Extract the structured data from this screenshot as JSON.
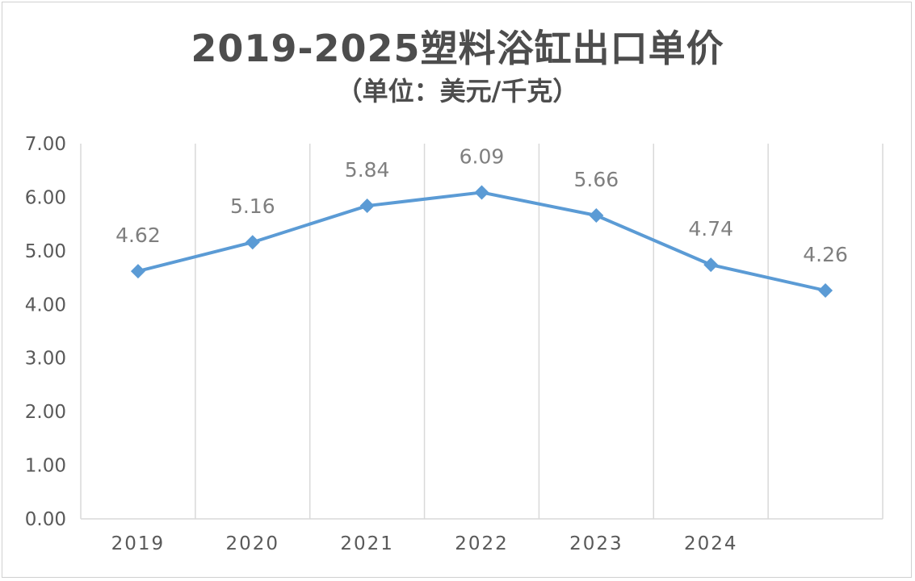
{
  "chart_data": {
    "type": "line",
    "title": "2019-2025塑料浴缸出口单价",
    "subtitle": "（单位：美元/千克）",
    "categories": [
      "2019",
      "2020",
      "2021",
      "2022",
      "2023",
      "2024",
      ""
    ],
    "series": [
      {
        "values": [
          4.62,
          5.16,
          5.84,
          6.09,
          5.66,
          4.74,
          4.26
        ]
      }
    ],
    "data_labels": [
      "4.62",
      "5.16",
      "5.84",
      "6.09",
      "5.66",
      "4.74",
      "4.26"
    ],
    "y_ticks": [
      "0.00",
      "1.00",
      "2.00",
      "3.00",
      "4.00",
      "5.00",
      "6.00",
      "7.00"
    ],
    "ylim": [
      0,
      7
    ],
    "grid": "vertical",
    "legend": "none",
    "colors": {
      "line": "#5b9bd5",
      "grid": "#d9d9d9",
      "label": "#7f7f7f",
      "text": "#595959"
    }
  }
}
